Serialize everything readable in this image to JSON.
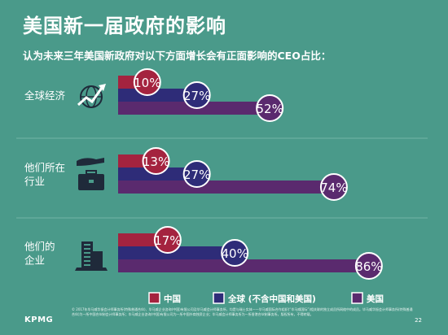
{
  "page": {
    "title": "美国新一届政府的影响",
    "subtitle": "认为未来三年美国新政府对以下方面增长会有正面影响的CEO占比：",
    "footer_text": "© 2017年毕马威华振会计师事务所(特殊普通合伙)、毕马威企业咨询(中国)有限公司及毕马威会计师事务所，均是与瑞士实体——毕马威国际合作组织(“毕马威国际”)相关联的独立成员所网络中的成员。毕马威华振会计师事务所(特殊普通合伙)为一所中国合伙制会计师事务所；毕马威企业咨询(中国)有限公司为一所中国外商独资企业；毕马威会计师事务所为一所香港合伙制事务所。版权所有，不得转载。",
    "logo": "KPMG",
    "page_number": "22"
  },
  "chart_data": {
    "type": "bar",
    "orientation": "horizontal",
    "categories": [
      "全球经济",
      "他们所在行业",
      "他们的企业"
    ],
    "category_lines": [
      [
        "全球经济"
      ],
      [
        "他们所在",
        "行业"
      ],
      [
        "他们的",
        "企业"
      ]
    ],
    "category_icons": [
      "globe-growth-icon",
      "briefcase-hand-icon",
      "buildings-icon"
    ],
    "series": [
      {
        "name": "中国",
        "color": "#a4233f",
        "values": [
          10,
          13,
          17
        ],
        "labels": [
          "10%",
          "13%",
          "17%"
        ]
      },
      {
        "name": "全球 (不含中国和美国)",
        "color": "#2e2c78",
        "values": [
          27,
          27,
          40
        ],
        "labels": [
          "27%",
          "27%",
          "40%"
        ]
      },
      {
        "name": "美国",
        "color": "#5a2a6e",
        "values": [
          52,
          74,
          86
        ],
        "labels": [
          "52%",
          "74%",
          "86%"
        ]
      }
    ],
    "xlim": [
      0,
      100
    ],
    "legend_position": "bottom",
    "grid": false
  }
}
